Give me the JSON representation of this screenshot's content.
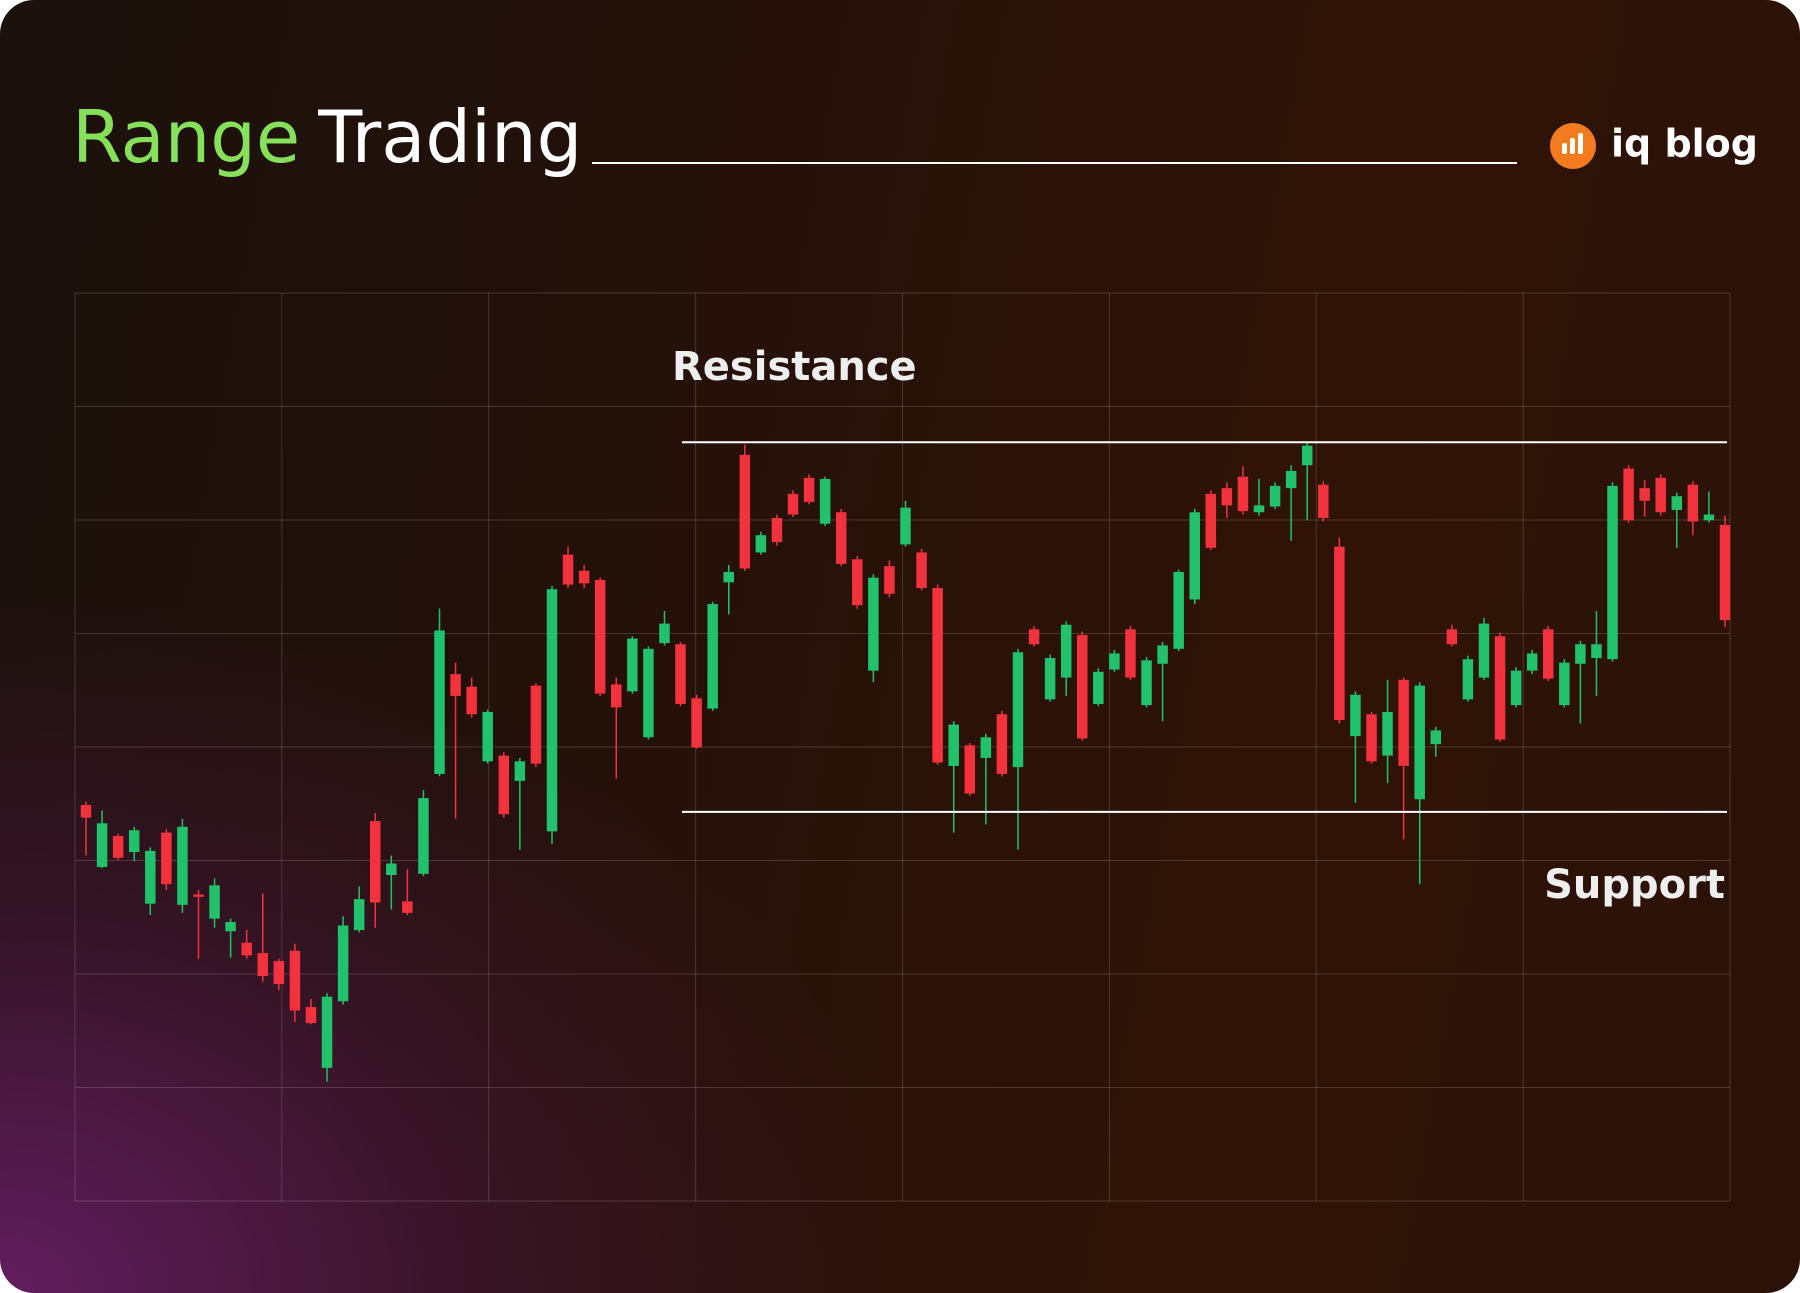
{
  "chart_data": {
    "type": "candlestick",
    "title": [
      "Range",
      "Trading"
    ],
    "title_colors": [
      "#86e05a",
      "#ffffff"
    ],
    "brand": "iq blog",
    "ylim": [
      0,
      791
    ],
    "grid": true,
    "up_color": "#21c26b",
    "down_color": "#f2323d",
    "annotations": [
      {
        "text": "Resistance",
        "value": 661
      },
      {
        "text": "Support",
        "value": 339
      }
    ],
    "open": [
      345,
      291,
      318,
      304,
      259,
      321,
      258,
      267,
      246,
      235,
      225,
      216,
      209,
      218,
      169,
      116,
      174,
      236,
      331,
      284,
      261,
      285,
      372,
      459,
      448,
      383,
      388,
      366,
      449,
      322,
      563,
      549,
      541,
      450,
      444,
      404,
      486,
      485,
      438,
      429,
      539,
      650,
      565,
      595,
      616,
      630,
      590,
      600,
      559,
      462,
      553,
      572,
      565,
      534,
      379,
      397,
      386,
      424,
      378,
      498,
      437,
      456,
      493,
      433,
      463,
      498,
      432,
      468,
      481,
      524,
      616,
      621,
      631,
      600,
      605,
      621,
      641,
      624,
      570,
      405,
      424,
      388,
      454,
      350,
      398,
      498,
      437,
      456,
      492,
      432,
      462,
      498,
      432,
      468,
      473,
      472,
      638,
      621,
      630,
      602,
      624,
      593,
      589
    ],
    "high": [
      348,
      340,
      320,
      326,
      308,
      324,
      333,
      271,
      281,
      246,
      236,
      268,
      211,
      224,
      176,
      181,
      248,
      274,
      338,
      301,
      289,
      358,
      516,
      469,
      456,
      428,
      391,
      386,
      451,
      536,
      570,
      554,
      543,
      456,
      492,
      483,
      514,
      487,
      441,
      522,
      554,
      659,
      583,
      598,
      619,
      633,
      631,
      603,
      562,
      546,
      558,
      610,
      568,
      537,
      418,
      399,
      407,
      427,
      481,
      501,
      476,
      505,
      496,
      464,
      480,
      501,
      474,
      487,
      550,
      603,
      619,
      626,
      640,
      629,
      626,
      641,
      661,
      627,
      578,
      444,
      426,
      454,
      456,
      452,
      413,
      502,
      475,
      508,
      495,
      465,
      480,
      501,
      472,
      488,
      514,
      626,
      641,
      628,
      633,
      617,
      627,
      618,
      597
    ],
    "low": [
      301,
      290,
      297,
      296,
      249,
      271,
      251,
      211,
      238,
      212,
      211,
      191,
      184,
      156,
      154,
      104,
      171,
      234,
      238,
      254,
      249,
      283,
      370,
      333,
      421,
      381,
      334,
      306,
      378,
      311,
      534,
      534,
      440,
      368,
      442,
      402,
      484,
      431,
      394,
      427,
      511,
      549,
      563,
      571,
      596,
      607,
      588,
      553,
      516,
      452,
      526,
      570,
      532,
      380,
      321,
      353,
      328,
      370,
      306,
      483,
      435,
      440,
      401,
      431,
      461,
      454,
      430,
      418,
      479,
      520,
      567,
      595,
      598,
      597,
      603,
      575,
      593,
      592,
      416,
      347,
      381,
      364,
      315,
      276,
      387,
      483,
      435,
      454,
      400,
      430,
      459,
      453,
      430,
      416,
      440,
      470,
      591,
      596,
      597,
      569,
      580,
      591,
      500
    ],
    "close": [
      334,
      329,
      299,
      323,
      305,
      276,
      326,
      265,
      275,
      243,
      214,
      196,
      189,
      166,
      155,
      178,
      240,
      263,
      260,
      294,
      251,
      351,
      497,
      440,
      424,
      426,
      337,
      383,
      381,
      533,
      537,
      538,
      442,
      430,
      490,
      481,
      503,
      433,
      395,
      520,
      548,
      551,
      580,
      574,
      598,
      609,
      629,
      555,
      519,
      543,
      529,
      604,
      534,
      382,
      415,
      355,
      404,
      372,
      478,
      485,
      473,
      502,
      403,
      461,
      477,
      456,
      471,
      484,
      548,
      600,
      569,
      606,
      601,
      606,
      623,
      636,
      658,
      595,
      419,
      441,
      383,
      426,
      379,
      449,
      410,
      485,
      472,
      503,
      402,
      462,
      477,
      455,
      469,
      485,
      485,
      623,
      593,
      610,
      600,
      614,
      592,
      598,
      506
    ]
  }
}
